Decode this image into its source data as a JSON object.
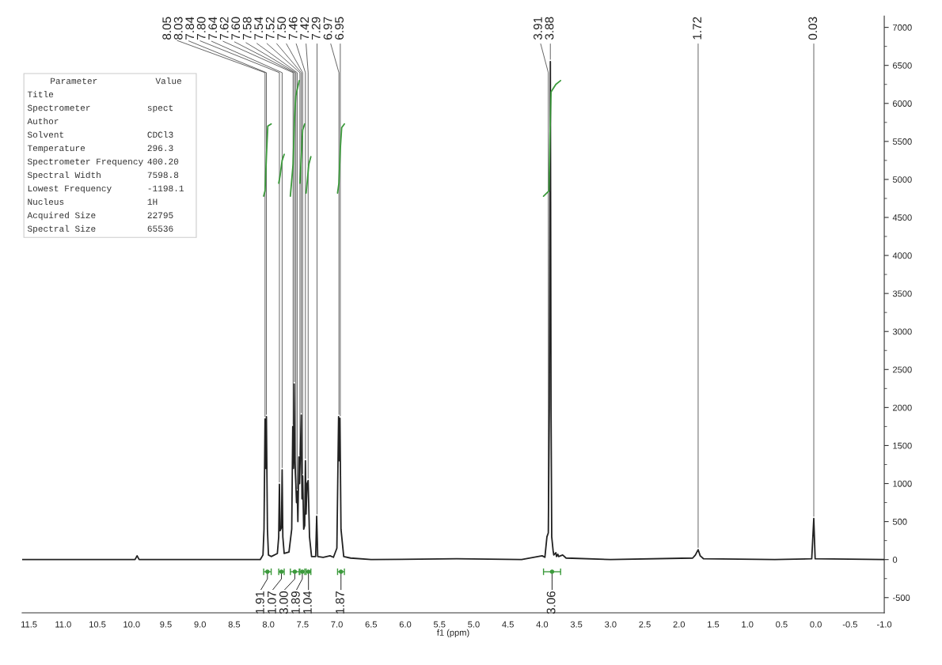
{
  "chart_data": {
    "type": "line",
    "xlabel": "f1 (ppm)",
    "xlim": [
      11.6,
      -1.0
    ],
    "xticks": [
      11.5,
      {
        "value": 11,
        "label": "11.0"
      },
      10.5,
      {
        "value": 10,
        "label": "10.0"
      },
      9.5,
      {
        "value": 9,
        "label": "9.0"
      },
      8.5,
      {
        "value": 8,
        "label": "8.0"
      },
      7.5,
      {
        "value": 7,
        "label": "7.0"
      },
      6.5,
      {
        "value": 6,
        "label": "6.0"
      },
      5.5,
      {
        "value": 5,
        "label": "5.0"
      },
      4.5,
      {
        "value": 4,
        "label": "4.0"
      },
      3.5,
      {
        "value": 3,
        "label": "3.0"
      },
      2.5,
      {
        "value": 2,
        "label": "2.0"
      },
      1.5,
      {
        "value": 1,
        "label": "1.0"
      },
      0.5,
      {
        "value": 0,
        "label": "0.0"
      },
      -0.5,
      {
        "value": -1,
        "label": "-1.0"
      }
    ],
    "ylim": [
      -700,
      7150
    ],
    "yticks": [
      -500,
      0,
      500,
      1000,
      1500,
      2000,
      2500,
      3000,
      3500,
      4000,
      4500,
      5000,
      5500,
      6000,
      6500,
      7000
    ],
    "grid": false,
    "series": [
      {
        "color": "#222222",
        "x": [
          11.6,
          9.95,
          9.92,
          9.89,
          8.12,
          8.08,
          8.065,
          8.05,
          8.04,
          8.03,
          8.015,
          8.0,
          7.96,
          7.87,
          7.85,
          7.84,
          7.83,
          7.81,
          7.8,
          7.79,
          7.77,
          7.7,
          7.66,
          7.645,
          7.635,
          7.625,
          7.615,
          7.6,
          7.59,
          7.58,
          7.57,
          7.555,
          7.545,
          7.52,
          7.51,
          7.5,
          7.485,
          7.47,
          7.46,
          7.45,
          7.435,
          7.42,
          7.4,
          7.37,
          7.31,
          7.295,
          7.28,
          7.2,
          7.1,
          7.05,
          7.0,
          6.975,
          6.965,
          6.955,
          6.94,
          6.9,
          6.8,
          6.5,
          5.25,
          4.3,
          4.0,
          3.96,
          3.93,
          3.91,
          3.895,
          3.88,
          3.87,
          3.86,
          3.84,
          3.83,
          3.8,
          3.79,
          3.77,
          3.76,
          3.7,
          3.65,
          3.0,
          1.8,
          1.76,
          1.72,
          1.69,
          1.64,
          0.6,
          0.06,
          0.03,
          0.01,
          -1.0
        ],
        "values": [
          0,
          0,
          50,
          0,
          0,
          60,
          400,
          1850,
          1200,
          1880,
          400,
          60,
          40,
          80,
          300,
          990,
          380,
          420,
          1180,
          300,
          80,
          100,
          400,
          1750,
          1200,
          2310,
          1300,
          1000,
          750,
          900,
          500,
          1350,
          1000,
          1900,
          800,
          1100,
          400,
          450,
          1300,
          600,
          1000,
          1040,
          300,
          40,
          40,
          570,
          40,
          30,
          50,
          30,
          150,
          1880,
          1300,
          1860,
          400,
          40,
          20,
          0,
          10,
          0,
          50,
          30,
          300,
          350,
          2000,
          6550,
          2000,
          300,
          120,
          60,
          90,
          40,
          70,
          40,
          60,
          20,
          0,
          20,
          60,
          130,
          50,
          10,
          0,
          10,
          540,
          10,
          0
        ]
      },
      {
        "color": "#3c9a3c",
        "x": [
          8.07,
          8.05,
          8.03,
          8.01,
          7.96
        ],
        "values": [
          4780,
          4850,
          5300,
          5700,
          5730
        ]
      },
      {
        "color": "#3c9a3c",
        "x": [
          7.85,
          7.83,
          7.8,
          7.77
        ],
        "values": [
          4950,
          5050,
          5250,
          5330
        ]
      },
      {
        "color": "#3c9a3c",
        "x": [
          7.68,
          7.64,
          7.62,
          7.6,
          7.55
        ],
        "values": [
          4780,
          5200,
          5800,
          6100,
          6300
        ]
      },
      {
        "color": "#3c9a3c",
        "x": [
          7.54,
          7.52,
          7.5,
          7.47
        ],
        "values": [
          4950,
          5300,
          5650,
          5730
        ]
      },
      {
        "color": "#3c9a3c",
        "x": [
          7.45,
          7.43,
          7.41,
          7.38
        ],
        "values": [
          4820,
          5000,
          5200,
          5300
        ]
      },
      {
        "color": "#3c9a3c",
        "x": [
          6.99,
          6.97,
          6.95,
          6.93,
          6.89
        ],
        "values": [
          4820,
          4950,
          5400,
          5680,
          5730
        ]
      },
      {
        "color": "#3c9a3c",
        "x": [
          3.98,
          3.9,
          3.885,
          3.87,
          3.8,
          3.73
        ],
        "values": [
          4780,
          4850,
          5600,
          6150,
          6250,
          6300
        ]
      },
      {
        "type": "scatter",
        "marker": "circle",
        "color": "#3c9a3c",
        "x": [
          8.015,
          7.81,
          7.615,
          7.505,
          7.415,
          6.94,
          3.855
        ],
        "values": [
          -160,
          -160,
          -160,
          -160,
          -160,
          -160,
          -160
        ],
        "xerrors": [
          [
            7.96,
            8.07
          ],
          [
            7.77,
            7.85
          ],
          [
            7.55,
            7.68
          ],
          [
            7.47,
            7.54
          ],
          [
            7.38,
            7.45
          ],
          [
            6.89,
            6.99
          ],
          [
            3.73,
            3.98
          ]
        ]
      }
    ],
    "annotations": [
      {
        "text": "8.05",
        "x": 8.05,
        "y": 1850
      },
      {
        "text": "8.03",
        "x": 8.03,
        "y": 1880
      },
      {
        "text": "7.84",
        "x": 7.84,
        "y": 990
      },
      {
        "text": "7.80",
        "x": 7.8,
        "y": 1180
      },
      {
        "text": "7.64",
        "x": 7.64,
        "y": 1750
      },
      {
        "text": "7.62",
        "x": 7.62,
        "y": 2310
      },
      {
        "text": "7.60",
        "x": 7.6,
        "y": 1000
      },
      {
        "text": "7.58",
        "x": 7.58,
        "y": 900
      },
      {
        "text": "7.54",
        "x": 7.54,
        "y": 1350
      },
      {
        "text": "7.52",
        "x": 7.52,
        "y": 1900
      },
      {
        "text": "7.50",
        "x": 7.5,
        "y": 1100
      },
      {
        "text": "7.46",
        "x": 7.46,
        "y": 1300
      },
      {
        "text": "7.42",
        "x": 7.42,
        "y": 1040
      },
      {
        "text": "7.29",
        "x": 7.29,
        "y": 570
      },
      {
        "text": "6.97",
        "x": 6.97,
        "y": 1880
      },
      {
        "text": "6.95",
        "x": 6.95,
        "y": 1860
      },
      {
        "text": "3.91",
        "x": 3.91,
        "y": 350
      },
      {
        "text": "3.88",
        "x": 3.88,
        "y": 6550
      },
      {
        "text": "1.72",
        "x": 1.72,
        "y": 130
      },
      {
        "text": "0.03",
        "x": 0.03,
        "y": 540
      },
      {
        "text": "1.91",
        "x": 8.015,
        "y": -160
      },
      {
        "text": "1.07",
        "x": 7.81,
        "y": -160
      },
      {
        "text": "3.00",
        "x": 7.615,
        "y": -160
      },
      {
        "text": "1.89",
        "x": 7.505,
        "y": -160
      },
      {
        "text": "1.04",
        "x": 7.415,
        "y": -160
      },
      {
        "text": "1.87",
        "x": 6.94,
        "y": -160
      },
      {
        "text": "3.06",
        "x": 3.855,
        "y": -160
      },
      "Parameter\tValue",
      "Title",
      "Spectrometer\tspect",
      "Author",
      "Solvent\tCDCl3",
      "Temperature\t296.3",
      "Spectrometer Frequency\t400.20",
      "Spectral Width\t7598.8",
      "Lowest Frequency\t-1198.1",
      "Nucleus\t1H",
      "Acquired Size\t22795",
      "Spectral Size\t65536"
    ]
  }
}
